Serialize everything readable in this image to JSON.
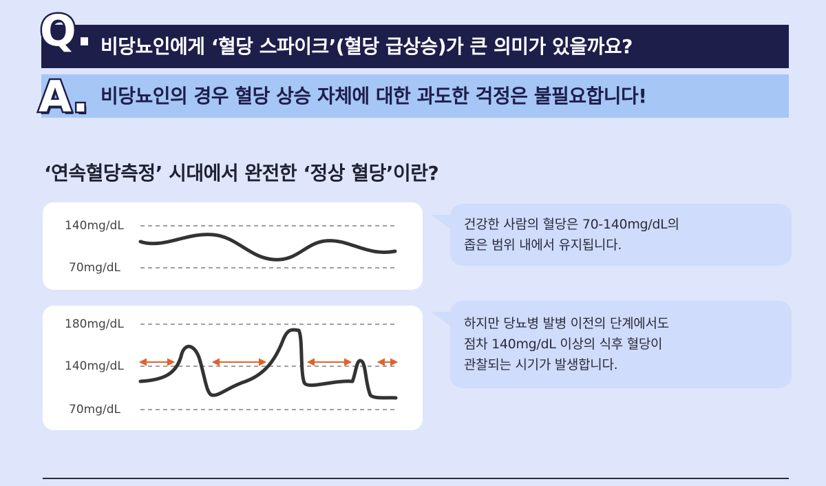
{
  "question": {
    "letter": "Q.",
    "text": "비당뇨인에게 ‘혈당 스파이크’(혈당 급상승)가 큰 의미가 있을까요?"
  },
  "answer": {
    "letter": "A.",
    "text": "비당뇨인의 경우 혈당 상승 자체에 대한 과도한 걱정은 불필요합니다!"
  },
  "section_title": "‘연속혈당측정’ 시대에서 완전한 ‘정상 혈당’이란?",
  "chart1": {
    "labels": {
      "upper": "140mg/dL",
      "lower": "70mg/dL"
    }
  },
  "chart2": {
    "labels": {
      "top": "180mg/dL",
      "middle": "140mg/dL",
      "bottom": "70mg/dL"
    }
  },
  "bubble1": {
    "line1": "건강한 사람의 혈당은 70-140mg/dL의",
    "line2": "좁은 범위 내에서 유지됩니다."
  },
  "bubble2": {
    "line1": "하지만 당뇨병 발병 이전의 단계에서도",
    "line2": "점차 140mg/dL 이상의 식후 혈당이",
    "line3": "관찰되는 시기가 발생합니다."
  },
  "colors": {
    "question_bar": "#1e1e4b",
    "answer_bar": "#a6c6f5",
    "background": "#dfe6fb",
    "bubble": "#cfdcfb",
    "arrow": "#e0622a",
    "curve": "#333333"
  }
}
